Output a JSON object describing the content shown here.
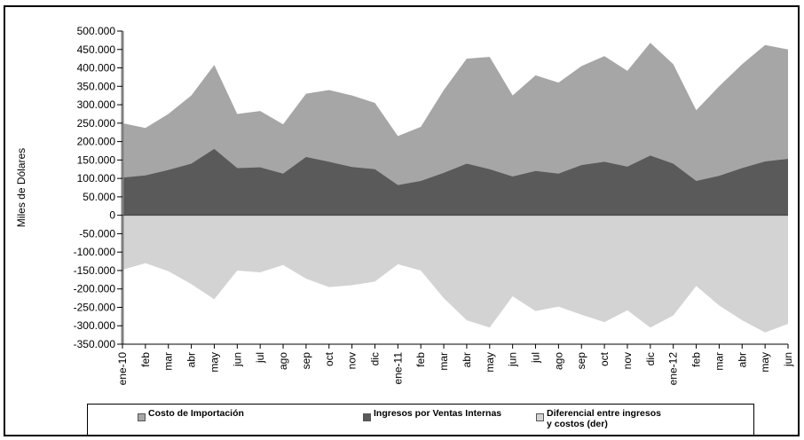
{
  "chart_data": {
    "type": "area",
    "ylabel": "Miles de Dólares",
    "ylim": [
      -350000,
      500000
    ],
    "ytick_step": 50000,
    "y_tick_labels": [
      "500.000",
      "450.000",
      "400.000",
      "350.000",
      "300.000",
      "250.000",
      "200.000",
      "150.000",
      "100.000",
      "50.000",
      "0",
      "-50.000",
      "-100.000",
      "-150.000",
      "-200.000",
      "-250.000",
      "-300.000",
      "-350.000"
    ],
    "categories": [
      "ene-10",
      "feb",
      "mar",
      "abr",
      "may",
      "jun",
      "jul",
      "ago",
      "sep",
      "oct",
      "nov",
      "dic",
      "ene-11",
      "feb",
      "mar",
      "abr",
      "may",
      "jun",
      "jul",
      "ago",
      "sep",
      "oct",
      "nov",
      "dic",
      "ene-12",
      "feb",
      "mar",
      "abr",
      "may",
      "jun"
    ],
    "series": [
      {
        "name": "Costo de Importación",
        "color": "#a6a6a6",
        "values": [
          250000,
          237000,
          275000,
          325000,
          408000,
          275000,
          283000,
          247000,
          330000,
          340000,
          325000,
          305000,
          215000,
          240000,
          340000,
          425000,
          430000,
          325000,
          380000,
          360000,
          405000,
          432000,
          392000,
          468000,
          410000,
          285000,
          350000,
          410000,
          462000,
          450000
        ]
      },
      {
        "name": "Ingresos por Ventas Internas",
        "color": "#5a5a5a",
        "values": [
          102000,
          108000,
          123000,
          140000,
          180000,
          128000,
          130000,
          113000,
          158000,
          145000,
          131000,
          125000,
          82000,
          93000,
          115000,
          140000,
          125000,
          105000,
          120000,
          113000,
          136000,
          145000,
          132000,
          162000,
          140000,
          93000,
          107000,
          128000,
          146000,
          153000
        ]
      },
      {
        "name": "Diferencial entre ingresos y costos (der)",
        "color": "#d3d3d3",
        "values": [
          -148000,
          -130000,
          -152000,
          -187000,
          -228000,
          -150000,
          -155000,
          -135000,
          -172000,
          -195000,
          -190000,
          -180000,
          -133000,
          -150000,
          -225000,
          -285000,
          -305000,
          -220000,
          -260000,
          -248000,
          -270000,
          -290000,
          -258000,
          -305000,
          -272000,
          -192000,
          -245000,
          -285000,
          -318000,
          -295000
        ]
      }
    ],
    "legend": {
      "position": "bottom",
      "items": [
        "Costo de Importación",
        "Ingresos por Ventas Internas",
        "Diferencial entre ingresos",
        "y costos (der)"
      ]
    },
    "grid": false
  }
}
